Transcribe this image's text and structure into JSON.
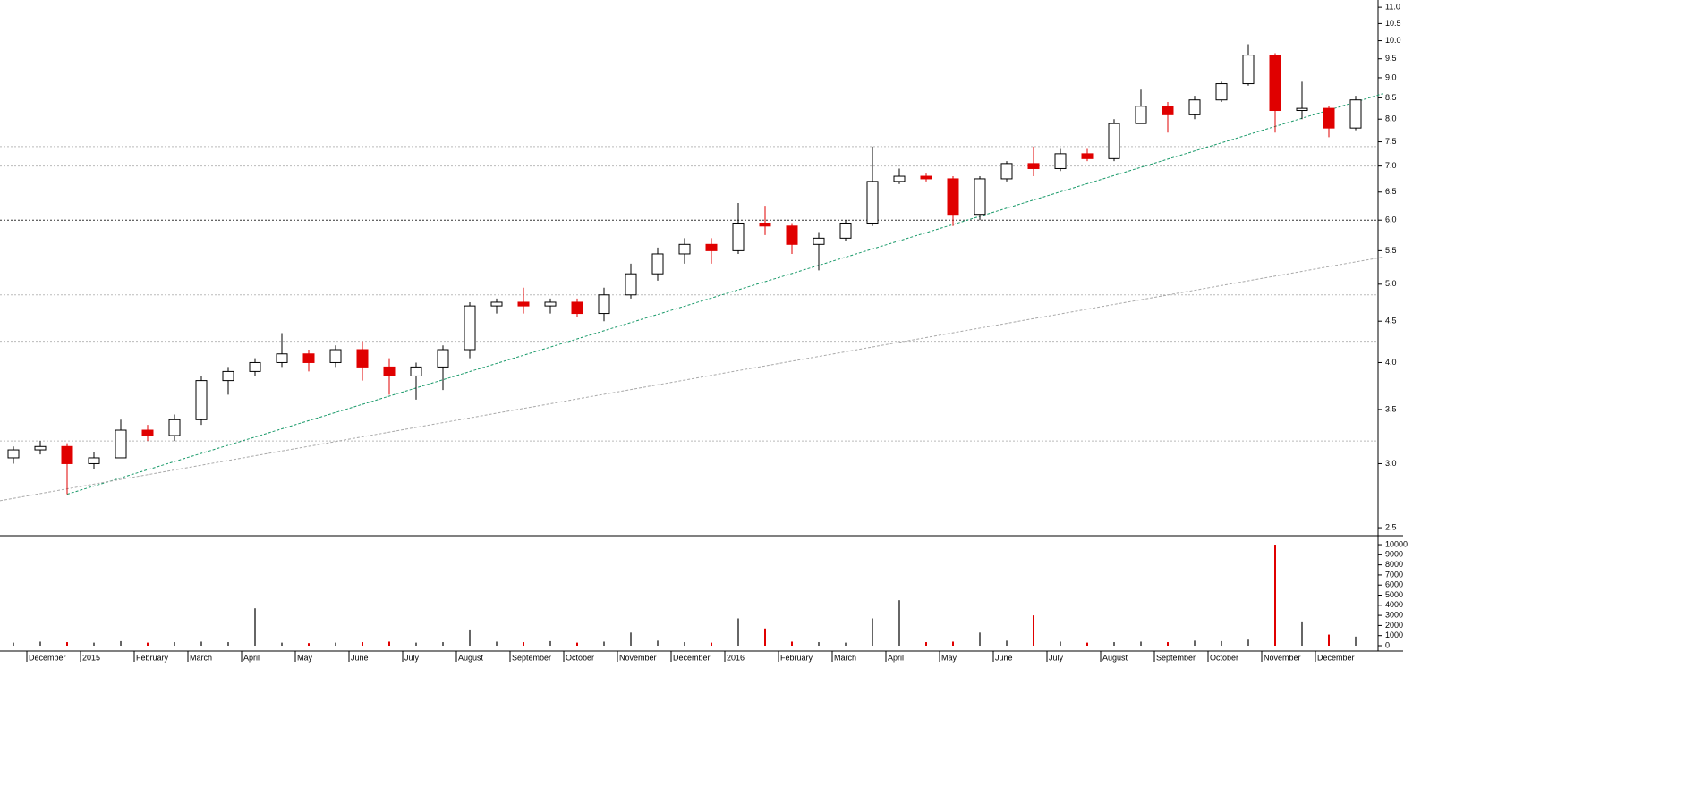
{
  "chart_data": {
    "type": "candlestick",
    "categories": [
      null,
      "December",
      null,
      "2015",
      null,
      "February",
      null,
      "March",
      null,
      "April",
      null,
      "May",
      null,
      "June",
      null,
      "July",
      null,
      "August",
      null,
      "September",
      null,
      "October",
      null,
      "November",
      null,
      "December",
      null,
      "2016",
      null,
      "February",
      null,
      "March",
      null,
      "April",
      null,
      "May",
      null,
      "June",
      null,
      "July",
      null,
      "August",
      null,
      "September",
      null,
      "October",
      null,
      "November",
      null,
      "December",
      null
    ],
    "open": [
      3.05,
      3.12,
      3.15,
      3.0,
      3.05,
      3.3,
      3.25,
      3.4,
      3.8,
      3.9,
      4.0,
      4.1,
      4.0,
      4.15,
      3.95,
      3.85,
      3.95,
      4.15,
      4.7,
      4.75,
      4.7,
      4.75,
      4.6,
      4.85,
      5.15,
      5.45,
      5.6,
      5.5,
      5.95,
      5.9,
      5.6,
      5.7,
      5.95,
      6.7,
      6.8,
      6.75,
      6.1,
      6.75,
      7.05,
      6.95,
      7.25,
      7.15,
      7.9,
      8.3,
      8.1,
      8.45,
      8.85,
      9.6,
      8.2,
      8.25,
      7.8
    ],
    "high": [
      3.15,
      3.2,
      3.18,
      3.1,
      3.4,
      3.35,
      3.45,
      3.85,
      3.95,
      4.05,
      4.35,
      4.15,
      4.2,
      4.25,
      4.05,
      4.0,
      4.2,
      4.75,
      4.8,
      4.95,
      4.8,
      4.8,
      4.95,
      5.3,
      5.55,
      5.7,
      5.7,
      6.3,
      6.25,
      5.95,
      5.8,
      6.0,
      7.4,
      6.95,
      6.85,
      6.8,
      6.8,
      7.1,
      7.4,
      7.35,
      7.35,
      8.0,
      8.7,
      8.4,
      8.55,
      8.9,
      9.9,
      9.65,
      8.9,
      8.3,
      8.55
    ],
    "low": [
      3.0,
      3.08,
      2.75,
      2.95,
      3.05,
      3.2,
      3.2,
      3.35,
      3.65,
      3.85,
      3.95,
      3.9,
      3.95,
      3.8,
      3.65,
      3.6,
      3.7,
      4.05,
      4.6,
      4.6,
      4.6,
      4.55,
      4.5,
      4.8,
      5.05,
      5.3,
      5.3,
      5.45,
      5.75,
      5.45,
      5.2,
      5.65,
      5.9,
      6.65,
      6.7,
      5.9,
      6.0,
      6.7,
      6.8,
      6.9,
      7.1,
      7.1,
      7.9,
      7.7,
      8.0,
      8.4,
      8.8,
      7.7,
      8.0,
      7.6,
      7.75
    ],
    "close": [
      3.12,
      3.15,
      3.0,
      3.05,
      3.3,
      3.25,
      3.4,
      3.8,
      3.9,
      4.0,
      4.1,
      4.0,
      4.15,
      3.95,
      3.85,
      3.95,
      4.15,
      4.7,
      4.75,
      4.7,
      4.75,
      4.6,
      4.85,
      5.15,
      5.45,
      5.6,
      5.5,
      5.95,
      5.9,
      5.6,
      5.7,
      5.95,
      6.7,
      6.8,
      6.75,
      6.1,
      6.75,
      7.05,
      6.95,
      7.25,
      7.15,
      7.9,
      8.3,
      8.1,
      8.45,
      8.85,
      9.6,
      8.2,
      8.25,
      7.8,
      8.45
    ],
    "volume": [
      300,
      400,
      350,
      300,
      450,
      300,
      350,
      400,
      350,
      3700,
      300,
      250,
      300,
      350,
      400,
      300,
      350,
      1600,
      400,
      350,
      450,
      300,
      400,
      1300,
      500,
      350,
      300,
      2700,
      1700,
      400,
      350,
      300,
      2700,
      4500,
      350,
      400,
      1300,
      500,
      3000,
      400,
      300,
      350,
      400,
      350,
      500,
      450,
      600,
      10000,
      2400,
      1100,
      900
    ],
    "up_color": "#ffffff",
    "down_color": "#e00000",
    "outline_color": "#000000",
    "log_scale": true,
    "ylim": [
      2.45,
      11.23
    ],
    "yticks": [
      2.5,
      {
        "value": 3,
        "label": "3.0"
      },
      3.5,
      {
        "value": 4,
        "label": "4.0"
      },
      4.5,
      {
        "value": 5,
        "label": "5.0"
      },
      5.5,
      {
        "value": 6,
        "label": "6.0"
      },
      6.5,
      {
        "value": 7,
        "label": "7.0"
      },
      7.5,
      {
        "value": 8,
        "label": "8.0"
      },
      8.5,
      {
        "value": 9,
        "label": "9.0"
      },
      9.5,
      {
        "value": 10,
        "label": "10.0"
      },
      10.5,
      {
        "value": 11,
        "label": "11.0"
      }
    ],
    "volume_lim": [
      0,
      10800
    ],
    "volume_ticks": [
      0,
      1000,
      2000,
      3000,
      4000,
      5000,
      6000,
      7000,
      8000,
      9000,
      10000
    ],
    "levels": [
      {
        "value": 3.2,
        "color": "#bbbbbb"
      },
      {
        "value": 4.25,
        "color": "#bbbbbb"
      },
      {
        "value": 4.85,
        "color": "#bbbbbb"
      },
      {
        "value": 6,
        "color": "#333333"
      },
      {
        "value": 7,
        "color": "#bbbbbb"
      },
      {
        "value": 7.4,
        "color": "#bbbbbb"
      }
    ],
    "trendlines": [
      {
        "color": "#1a9a6a",
        "start": [
          2,
          2.75
        ],
        "end": [
          51,
          8.6
        ]
      },
      {
        "color": "#aaaaaa",
        "start": [
          -0.5,
          2.7
        ],
        "end": [
          51,
          5.4
        ]
      }
    ]
  }
}
